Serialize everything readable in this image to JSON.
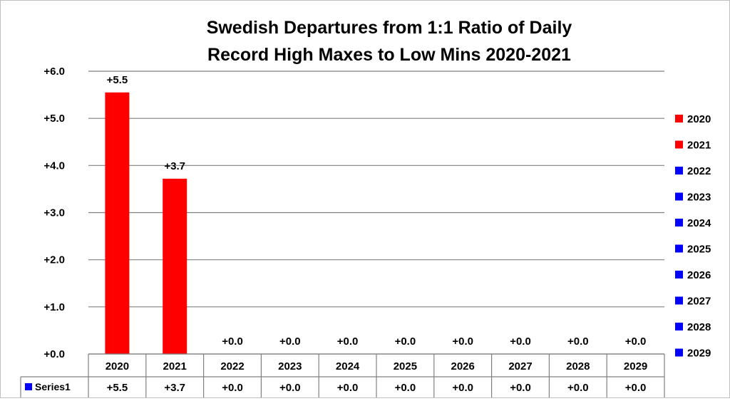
{
  "chart_data": {
    "type": "bar",
    "title_lines": [
      "Swedish Departures from 1:1 Ratio of Daily",
      "Record High Maxes to  Low Mins 2020-2021"
    ],
    "categories": [
      "2020",
      "2021",
      "2022",
      "2023",
      "2024",
      "2025",
      "2026",
      "2027",
      "2028",
      "2029"
    ],
    "series": [
      {
        "name": "Series1",
        "values": [
          5.55,
          3.72,
          0,
          0,
          0,
          0,
          0,
          0,
          0,
          0
        ],
        "labels": [
          "+5.5",
          "+3.7",
          "+0.0",
          "+0.0",
          "+0.0",
          "+0.0",
          "+0.0",
          "+0.0",
          "+0.0",
          "+0.0"
        ],
        "colors": [
          "#ff0000",
          "#ff0000",
          "#0000ff",
          "#0000ff",
          "#0000ff",
          "#0000ff",
          "#0000ff",
          "#0000ff",
          "#0000ff",
          "#0000ff"
        ]
      }
    ],
    "ylim": [
      0,
      6
    ],
    "yticks": [
      0,
      1,
      2,
      3,
      4,
      5,
      6
    ],
    "ytick_labels": [
      "+0.0",
      "+1.0",
      "+2.0",
      "+3.0",
      "+4.0",
      "+5.0",
      "+6.0"
    ],
    "grid": true,
    "legend": {
      "placement": "right",
      "entries": [
        {
          "label": "2020",
          "color": "#ff0000"
        },
        {
          "label": "2021",
          "color": "#ff0000"
        },
        {
          "label": "2022",
          "color": "#0000ff"
        },
        {
          "label": "2023",
          "color": "#0000ff"
        },
        {
          "label": "2024",
          "color": "#0000ff"
        },
        {
          "label": "2025",
          "color": "#0000ff"
        },
        {
          "label": "2026",
          "color": "#0000ff"
        },
        {
          "label": "2027",
          "color": "#0000ff"
        },
        {
          "label": "2028",
          "color": "#0000ff"
        },
        {
          "label": "2029",
          "color": "#0000ff"
        }
      ]
    },
    "data_table": {
      "row_label": "Series1",
      "key_color": "#0000ff",
      "values": [
        "+5.5",
        "+3.7",
        "+0.0",
        "+0.0",
        "+0.0",
        "+0.0",
        "+0.0",
        "+0.0",
        "+0.0",
        "+0.0"
      ]
    }
  }
}
